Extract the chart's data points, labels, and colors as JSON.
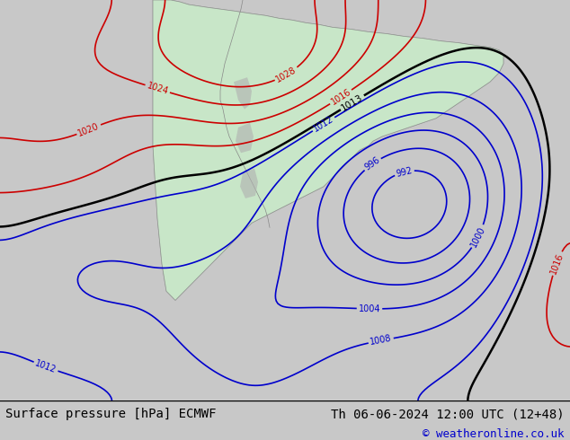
{
  "title_left": "Surface pressure [hPa] ECMWF",
  "title_right": "Th 06-06-2024 12:00 UTC (12+48)",
  "copyright": "© weatheronline.co.uk",
  "bg_color": "#d8d8d8",
  "land_color": "#c8e6c8",
  "ocean_color": "#e8e8e8",
  "contour_color_low": "#0000cc",
  "contour_color_high": "#cc0000",
  "contour_color_1013": "#000000",
  "footer_bg": "#ffffff",
  "figsize": [
    6.34,
    4.9
  ],
  "dpi": 100
}
